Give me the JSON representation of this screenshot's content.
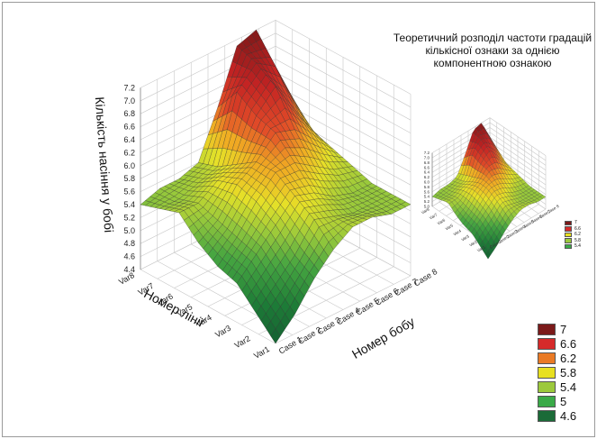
{
  "chart_data": [
    {
      "type": "surface3d",
      "title": "",
      "zlabel": "Кількість насіння у бобі",
      "xlabel": "Номер лінії",
      "ylabel": "Номер бобу",
      "x_categories": [
        "Var1",
        "Var2",
        "Var3",
        "Var4",
        "Var5",
        "Var6",
        "Var7",
        "Var8"
      ],
      "y_categories": [
        "Case 1",
        "Case 2",
        "Case 3",
        "Case 4",
        "Case 5",
        "Case 6",
        "Case 7",
        "Case 8"
      ],
      "z_ticks": [
        "4.4",
        "4.6",
        "4.8",
        "5.0",
        "5.2",
        "5.4",
        "5.6",
        "5.8",
        "6.0",
        "6.2",
        "6.4",
        "6.6",
        "6.8",
        "7.0",
        "7.2"
      ],
      "zlim": [
        4.4,
        7.2
      ],
      "values": [
        [
          4.4,
          4.7,
          5.1,
          5.4,
          5.6,
          5.6,
          5.5,
          5.5
        ],
        [
          4.7,
          5.0,
          5.3,
          5.7,
          5.6,
          5.5,
          5.5,
          5.5
        ],
        [
          5.0,
          5.3,
          5.6,
          5.9,
          5.8,
          5.6,
          5.5,
          5.5
        ],
        [
          5.1,
          5.4,
          5.8,
          6.1,
          6.1,
          5.9,
          5.7,
          5.6
        ],
        [
          5.3,
          5.5,
          5.9,
          6.1,
          6.4,
          6.3,
          6.0,
          5.7
        ],
        [
          5.6,
          5.6,
          5.8,
          5.9,
          6.5,
          6.8,
          6.3,
          5.8
        ],
        [
          5.5,
          5.5,
          5.6,
          5.7,
          6.7,
          7.0,
          6.8,
          6.1
        ],
        [
          5.4,
          5.5,
          5.5,
          5.6,
          6.3,
          7.1,
          7.2,
          6.4
        ]
      ],
      "legend": {
        "placement": "bottom-right",
        "levels": [
          "7",
          "6.6",
          "6.2",
          "5.8",
          "5.4",
          "5",
          "4.6"
        ],
        "colors": [
          "#7b1a1a",
          "#d62a2a",
          "#ea7a25",
          "#e8e020",
          "#9cc93c",
          "#3aaa48",
          "#1b6b38"
        ]
      }
    },
    {
      "type": "surface3d",
      "title": "Теоретичний розподіл частоти градацій кількісної ознаки за однією компонентною ознакою",
      "x_categories": [
        "Var1",
        "Var2",
        "Var3",
        "Var4",
        "Var5",
        "Var6",
        "Var7",
        "Var8"
      ],
      "y_categories": [
        "Case 1",
        "Case 2",
        "Case 3",
        "Case 4",
        "Case 5",
        "Case 6",
        "Case 7",
        "Case 8"
      ],
      "z_ticks": [
        "5.0",
        "5.2",
        "5.4",
        "5.6",
        "5.8",
        "6.0",
        "6.2",
        "6.4",
        "6.6",
        "6.8",
        "7.0",
        "7.2"
      ],
      "zlim": [
        5.0,
        7.2
      ],
      "legend": {
        "placement": "right",
        "levels": [
          "7",
          "6.6",
          "6.2",
          "5.8",
          "5.4"
        ],
        "colors": [
          "#7b1a1a",
          "#d62a2a",
          "#e8e020",
          "#9cc93c",
          "#3aaa48"
        ]
      }
    }
  ]
}
